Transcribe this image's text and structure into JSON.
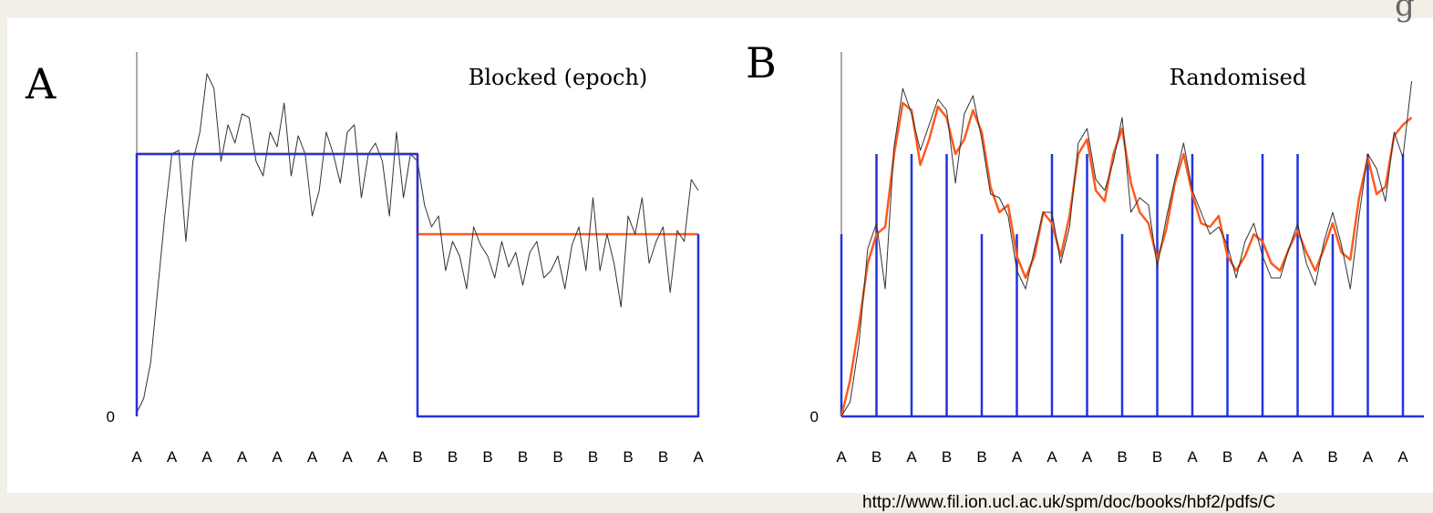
{
  "corner_glyph": "g",
  "source_url": "http://www.fil.ion.ucl.ac.uk/spm/doc/books/hbf2/pdfs/C",
  "chart_data": [
    {
      "type": "line",
      "panel_label": "A",
      "title": "Blocked (epoch)",
      "y_tick_labels": [
        "0"
      ],
      "x_tick_labels": [
        "A",
        "A",
        "A",
        "A",
        "A",
        "A",
        "A",
        "A",
        "B",
        "B",
        "B",
        "B",
        "B",
        "B",
        "B",
        "B",
        "A"
      ],
      "ylim": [
        0,
        1
      ],
      "series": [
        {
          "color": "#ff5a1e",
          "x": [
            0,
            8,
            8,
            16
          ],
          "y": [
            0.72,
            0.72,
            0.5,
            0.5
          ]
        },
        {
          "color": "#333333",
          "x": [
            0,
            0.2,
            0.4,
            0.6,
            0.8,
            1,
            1.2,
            1.4,
            1.6,
            1.8,
            2,
            2.2,
            2.4,
            2.6,
            2.8,
            3,
            3.2,
            3.4,
            3.6,
            3.8,
            4,
            4.2,
            4.4,
            4.6,
            4.8,
            5,
            5.2,
            5.4,
            5.6,
            5.8,
            6,
            6.2,
            6.4,
            6.6,
            6.8,
            7,
            7.2,
            7.4,
            7.6,
            7.8,
            8,
            8.2,
            8.4,
            8.6,
            8.8,
            9,
            9.2,
            9.4,
            9.6,
            9.8,
            10,
            10.2,
            10.4,
            10.6,
            10.8,
            11,
            11.2,
            11.4,
            11.6,
            11.8,
            12,
            12.2,
            12.4,
            12.6,
            12.8,
            13,
            13.2,
            13.4,
            13.6,
            13.8,
            14,
            14.2,
            14.4,
            14.6,
            14.8,
            15,
            15.2,
            15.4,
            15.6,
            15.8,
            16
          ],
          "y": [
            0.01,
            0.05,
            0.15,
            0.35,
            0.55,
            0.72,
            0.73,
            0.48,
            0.7,
            0.78,
            0.94,
            0.9,
            0.7,
            0.8,
            0.75,
            0.83,
            0.82,
            0.7,
            0.66,
            0.78,
            0.74,
            0.86,
            0.66,
            0.77,
            0.72,
            0.55,
            0.62,
            0.78,
            0.72,
            0.64,
            0.78,
            0.8,
            0.6,
            0.72,
            0.75,
            0.7,
            0.55,
            0.78,
            0.6,
            0.72,
            0.7,
            0.58,
            0.52,
            0.55,
            0.4,
            0.48,
            0.44,
            0.35,
            0.52,
            0.47,
            0.44,
            0.38,
            0.48,
            0.41,
            0.45,
            0.36,
            0.45,
            0.48,
            0.38,
            0.4,
            0.44,
            0.35,
            0.47,
            0.52,
            0.4,
            0.6,
            0.4,
            0.5,
            0.42,
            0.3,
            0.55,
            0.5,
            0.6,
            0.42,
            0.48,
            0.52,
            0.34,
            0.51,
            0.48,
            0.65,
            0.62
          ]
        },
        {
          "color": "#2233dd",
          "x": [
            0,
            0,
            8,
            8,
            16,
            16
          ],
          "y": [
            0,
            0.72,
            0.72,
            0,
            0,
            0.5
          ]
        }
      ]
    },
    {
      "type": "line",
      "panel_label": "B",
      "title": "Randomised",
      "y_tick_labels": [
        "0"
      ],
      "x_tick_labels": [
        "A",
        "B",
        "A",
        "B",
        "B",
        "A",
        "A",
        "A",
        "B",
        "B",
        "A",
        "B",
        "A",
        "A",
        "B",
        "A",
        "A"
      ],
      "ylim": [
        0,
        1
      ],
      "series": [
        {
          "color": "#2233dd",
          "type": "stem",
          "x": [
            0,
            1,
            2,
            3,
            4,
            5,
            6,
            7,
            8,
            9,
            10,
            11,
            12,
            13,
            14,
            15,
            16
          ],
          "y": [
            0.5,
            0.72,
            0.72,
            0.72,
            0.5,
            0.5,
            0.72,
            0.72,
            0.5,
            0.72,
            0.72,
            0.5,
            0.72,
            0.72,
            0.5,
            0.72,
            0.72
          ]
        },
        {
          "color": "#ff5a1e",
          "x": [
            0,
            0.25,
            0.5,
            0.75,
            1,
            1.25,
            1.5,
            1.75,
            2,
            2.25,
            2.5,
            2.75,
            3,
            3.25,
            3.5,
            3.75,
            4,
            4.25,
            4.5,
            4.75,
            5,
            5.25,
            5.5,
            5.75,
            6,
            6.25,
            6.5,
            6.75,
            7,
            7.25,
            7.5,
            7.75,
            8,
            8.25,
            8.5,
            8.75,
            9,
            9.25,
            9.5,
            9.75,
            10,
            10.25,
            10.5,
            10.75,
            11,
            11.25,
            11.5,
            11.75,
            12,
            12.25,
            12.5,
            12.75,
            13,
            13.25,
            13.5,
            13.75,
            14,
            14.25,
            14.5,
            14.75,
            15,
            15.25,
            15.5,
            15.75,
            16,
            16.25
          ],
          "y": [
            0,
            0.1,
            0.25,
            0.42,
            0.5,
            0.52,
            0.72,
            0.86,
            0.84,
            0.69,
            0.76,
            0.85,
            0.82,
            0.72,
            0.76,
            0.84,
            0.78,
            0.63,
            0.56,
            0.58,
            0.44,
            0.38,
            0.44,
            0.56,
            0.53,
            0.44,
            0.55,
            0.72,
            0.76,
            0.62,
            0.59,
            0.72,
            0.79,
            0.64,
            0.56,
            0.53,
            0.43,
            0.51,
            0.64,
            0.72,
            0.61,
            0.53,
            0.52,
            0.55,
            0.44,
            0.4,
            0.44,
            0.5,
            0.48,
            0.42,
            0.4,
            0.46,
            0.51,
            0.45,
            0.4,
            0.46,
            0.53,
            0.45,
            0.43,
            0.6,
            0.71,
            0.61,
            0.63,
            0.77,
            0.8,
            0.82
          ]
        },
        {
          "color": "#333333",
          "x": [
            0,
            0.25,
            0.5,
            0.75,
            1,
            1.25,
            1.5,
            1.75,
            2,
            2.25,
            2.5,
            2.75,
            3,
            3.25,
            3.5,
            3.75,
            4,
            4.25,
            4.5,
            4.75,
            5,
            5.25,
            5.5,
            5.75,
            6,
            6.25,
            6.5,
            6.75,
            7,
            7.25,
            7.5,
            7.75,
            8,
            8.25,
            8.5,
            8.75,
            9,
            9.25,
            9.5,
            9.75,
            10,
            10.25,
            10.5,
            10.75,
            11,
            11.25,
            11.5,
            11.75,
            12,
            12.25,
            12.5,
            12.75,
            13,
            13.25,
            13.5,
            13.75,
            14,
            14.25,
            14.5,
            14.75,
            15,
            15.25,
            15.5,
            15.75,
            16,
            16.25
          ],
          "y": [
            0,
            0.04,
            0.2,
            0.46,
            0.53,
            0.35,
            0.74,
            0.9,
            0.83,
            0.73,
            0.8,
            0.87,
            0.84,
            0.64,
            0.83,
            0.88,
            0.76,
            0.61,
            0.6,
            0.55,
            0.4,
            0.35,
            0.46,
            0.56,
            0.56,
            0.42,
            0.52,
            0.75,
            0.79,
            0.65,
            0.62,
            0.7,
            0.82,
            0.56,
            0.6,
            0.58,
            0.41,
            0.54,
            0.65,
            0.75,
            0.62,
            0.56,
            0.5,
            0.52,
            0.47,
            0.38,
            0.48,
            0.53,
            0.44,
            0.38,
            0.38,
            0.46,
            0.53,
            0.42,
            0.36,
            0.48,
            0.56,
            0.47,
            0.35,
            0.55,
            0.72,
            0.68,
            0.59,
            0.78,
            0.71,
            0.92
          ]
        }
      ]
    }
  ]
}
